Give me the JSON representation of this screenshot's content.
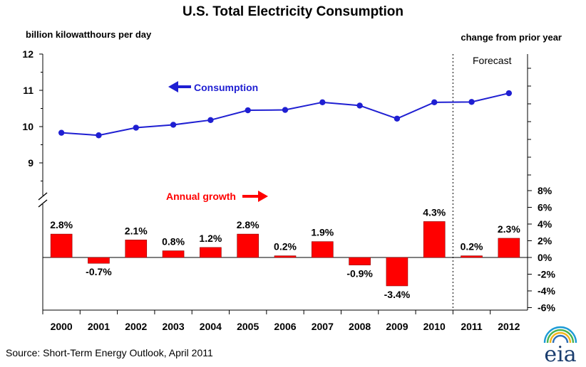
{
  "title": "U.S. Total Electricity Consumption",
  "left_axis_label": "billion kilowatthours per day",
  "right_axis_label": "change from prior year",
  "forecast_label": "Forecast",
  "source": "Source: Short-Term Energy Outlook, April 2011",
  "logo_text": "eia",
  "colors": {
    "line": "#1f1fd2",
    "bars": "#ff0000",
    "growth_label": "#ff0000",
    "consumption_label": "#1f1fd2"
  },
  "chart_data": {
    "type": "line+bar",
    "categories": [
      "2000",
      "2001",
      "2002",
      "2003",
      "2004",
      "2005",
      "2006",
      "2007",
      "2008",
      "2009",
      "2010",
      "2011",
      "2012"
    ],
    "forecast_start": "2011",
    "left_axis": {
      "ticks": [
        "9",
        "10",
        "11",
        "12"
      ],
      "range": [
        8.2,
        12
      ]
    },
    "right_axis": {
      "ticks": [
        "-6%",
        "-4%",
        "-2%",
        "0%",
        "2%",
        "4%",
        "6%",
        "8%"
      ],
      "range": [
        -6,
        8
      ]
    },
    "series": [
      {
        "name": "Consumption",
        "type": "line",
        "axis": "left",
        "values": [
          9.83,
          9.76,
          9.97,
          10.05,
          10.18,
          10.45,
          10.46,
          10.67,
          10.58,
          10.22,
          10.67,
          10.68,
          10.92
        ]
      },
      {
        "name": "Annual growth",
        "type": "bar",
        "axis": "right",
        "values": [
          2.8,
          -0.7,
          2.1,
          0.8,
          1.2,
          2.8,
          0.2,
          1.9,
          -0.9,
          -3.4,
          4.3,
          0.2,
          2.3
        ],
        "labels": [
          "2.8%",
          "-0.7%",
          "2.1%",
          "0.8%",
          "1.2%",
          "2.8%",
          "0.2%",
          "1.9%",
          "-0.9%",
          "-3.4%",
          "4.3%",
          "0.2%",
          "2.3%"
        ]
      }
    ]
  }
}
